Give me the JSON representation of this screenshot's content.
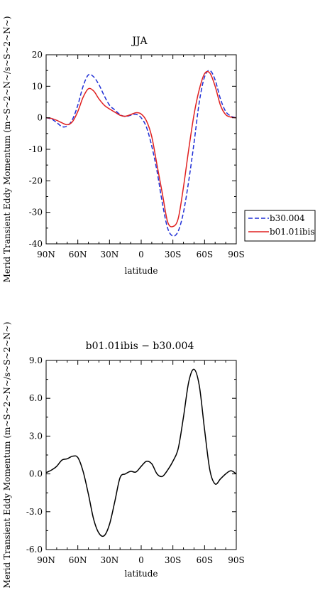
{
  "chart_data": [
    {
      "type": "line",
      "title": "JJA",
      "xlabel": "latitude",
      "ylabel": "Merid Transient Eddy Momentum (m~S~2~N~/s~S~2~N~)",
      "xlim": [
        90,
        -90
      ],
      "ylim": [
        -40,
        20
      ],
      "x_ticks": [
        "90N",
        "60N",
        "30N",
        "0",
        "30S",
        "60S",
        "90S"
      ],
      "x_tick_values": [
        90,
        60,
        30,
        0,
        -30,
        -60,
        -90
      ],
      "y_ticks": [
        20,
        10,
        0,
        -10,
        -20,
        -30,
        -40
      ],
      "legend_position": "right",
      "grid": false,
      "x": [
        90,
        85,
        80,
        75,
        70,
        65,
        60,
        55,
        50,
        45,
        40,
        35,
        30,
        25,
        20,
        15,
        10,
        5,
        0,
        -5,
        -10,
        -15,
        -20,
        -25,
        -30,
        -35,
        -40,
        -45,
        -50,
        -55,
        -60,
        -65,
        -70,
        -75,
        -80,
        -85,
        -90
      ],
      "series": [
        {
          "name": "b30.004",
          "color": "#1f2fd6",
          "dash": "dashed",
          "values": [
            0,
            -0.4,
            -1.5,
            -2.8,
            -2.6,
            -0.5,
            4.0,
            10.0,
            13.6,
            13.0,
            10.5,
            7.0,
            4.0,
            2.5,
            1.0,
            0.4,
            0.8,
            1.1,
            0.0,
            -3.0,
            -9.0,
            -17.0,
            -27.0,
            -35.0,
            -37.5,
            -36.0,
            -30.0,
            -20.0,
            -8.0,
            5.0,
            13.0,
            15.0,
            12.0,
            6.0,
            2.0,
            0.5,
            0
          ]
        },
        {
          "name": "b01.01ibis",
          "color": "#e02020",
          "dash": "solid",
          "values": [
            0,
            -0.2,
            -0.8,
            -1.6,
            -2.2,
            -1.2,
            2.0,
            6.5,
            9.2,
            8.5,
            6.0,
            4.0,
            2.8,
            1.8,
            0.8,
            0.5,
            1.0,
            1.6,
            1.2,
            -1.0,
            -6.0,
            -15.0,
            -24.0,
            -33.0,
            -34.5,
            -32.0,
            -22.0,
            -10.0,
            1.0,
            9.0,
            14.0,
            14.2,
            10.0,
            4.0,
            1.0,
            0.2,
            0
          ]
        }
      ]
    },
    {
      "type": "line",
      "title": "b01.01ibis − b30.004",
      "xlabel": "latitude",
      "ylabel": "Merid Transient Eddy Momentum (m~S~2~N~/s~S~2~N~)",
      "xlim": [
        90,
        -90
      ],
      "ylim": [
        -6,
        9
      ],
      "x_ticks": [
        "90N",
        "60N",
        "30N",
        "0",
        "30S",
        "60S",
        "90S"
      ],
      "x_tick_values": [
        90,
        60,
        30,
        0,
        -30,
        -60,
        -90
      ],
      "y_ticks": [
        "9.0",
        "6.0",
        "3.0",
        "0.0",
        "-3.0",
        "-6.0"
      ],
      "y_tick_values": [
        9,
        6,
        3,
        0,
        -3,
        -6
      ],
      "grid": false,
      "x": [
        90,
        85,
        80,
        75,
        70,
        65,
        60,
        55,
        50,
        45,
        40,
        35,
        30,
        25,
        20,
        15,
        10,
        5,
        0,
        -5,
        -10,
        -15,
        -20,
        -25,
        -30,
        -35,
        -40,
        -45,
        -50,
        -55,
        -60,
        -65,
        -70,
        -75,
        -80,
        -85,
        -90
      ],
      "series": [
        {
          "color": "#000000",
          "dash": "solid",
          "values": [
            0.1,
            0.3,
            0.6,
            1.1,
            1.2,
            1.4,
            1.3,
            0.2,
            -1.6,
            -3.6,
            -4.7,
            -4.9,
            -4.0,
            -2.2,
            -0.3,
            0.0,
            0.2,
            0.15,
            0.6,
            1.0,
            0.8,
            0.0,
            -0.2,
            0.3,
            1.0,
            2.0,
            4.5,
            7.3,
            8.3,
            7.0,
            3.5,
            0.3,
            -0.8,
            -0.4,
            0.0,
            0.25,
            0.0
          ]
        }
      ]
    }
  ]
}
